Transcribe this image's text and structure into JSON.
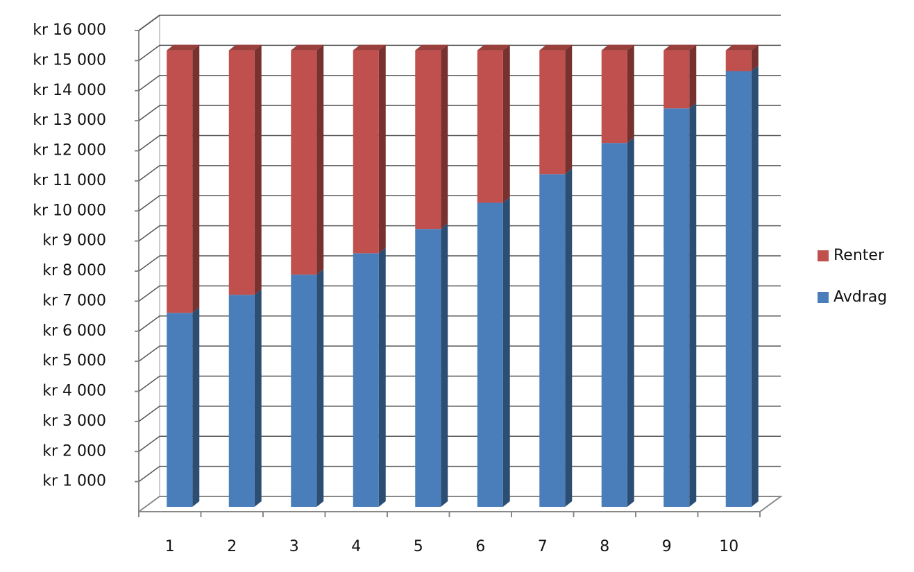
{
  "chart_data": {
    "type": "stacked-bar-3d",
    "categories": [
      "1",
      "2",
      "3",
      "4",
      "5",
      "6",
      "7",
      "8",
      "9",
      "10"
    ],
    "series": [
      {
        "name": "Avdrag",
        "color": "#4a7ebb",
        "values": [
          6450,
          7050,
          7720,
          8430,
          9240,
          10110,
          11060,
          12100,
          13250,
          14490
        ]
      },
      {
        "name": "Renter",
        "color": "#c0504d",
        "values": [
          8730,
          8130,
          7460,
          6750,
          5940,
          5070,
          4120,
          3080,
          1930,
          690
        ]
      }
    ],
    "ylim": [
      0,
      16000
    ],
    "yticks": [
      {
        "value": 1000,
        "label": "kr 1 000"
      },
      {
        "value": 2000,
        "label": "kr 2 000"
      },
      {
        "value": 3000,
        "label": "kr 3 000"
      },
      {
        "value": 4000,
        "label": "kr 4 000"
      },
      {
        "value": 5000,
        "label": "kr 5 000"
      },
      {
        "value": 6000,
        "label": "kr 6 000"
      },
      {
        "value": 7000,
        "label": "kr 7 000"
      },
      {
        "value": 8000,
        "label": "kr 8 000"
      },
      {
        "value": 9000,
        "label": "kr 9 000"
      },
      {
        "value": 10000,
        "label": "kr 10 000"
      },
      {
        "value": 11000,
        "label": "kr 11 000"
      },
      {
        "value": 12000,
        "label": "kr 12 000"
      },
      {
        "value": 13000,
        "label": "kr 13 000"
      },
      {
        "value": 14000,
        "label": "kr 14 000"
      },
      {
        "value": 15000,
        "label": "kr 15 000"
      },
      {
        "value": 16000,
        "label": "kr 16 000"
      }
    ],
    "grid": true
  }
}
